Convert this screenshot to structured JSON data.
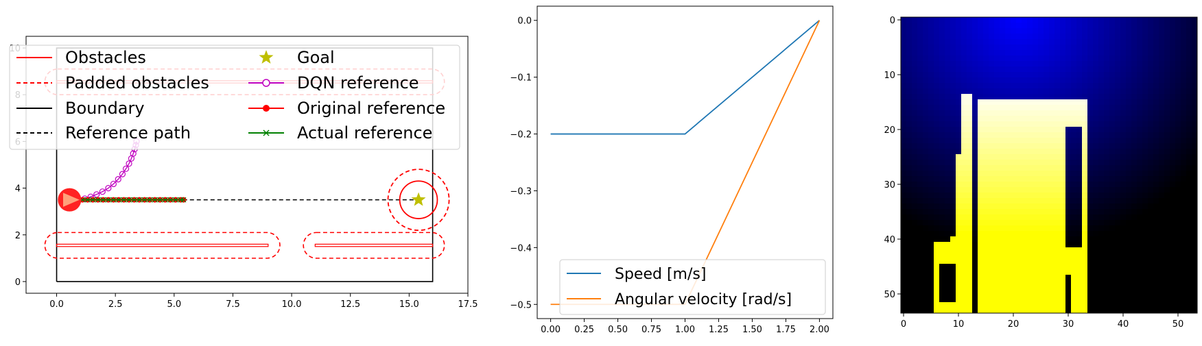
{
  "chart_data": [
    {
      "type": "line",
      "panel": "map",
      "xlim": [
        -1.3,
        17.5
      ],
      "ylim": [
        -0.5,
        10.5
      ],
      "xticks": [
        0.0,
        2.5,
        5.0,
        7.5,
        10.0,
        12.5,
        15.0,
        17.5
      ],
      "xtick_labels": [
        "0.0",
        "2.5",
        "5.0",
        "7.5",
        "10.0",
        "12.5",
        "15.0",
        "17.5"
      ],
      "yticks": [
        0,
        2,
        4,
        6,
        8,
        10
      ],
      "ytick_labels": [
        "0",
        "2",
        "4",
        "6",
        "8",
        "10"
      ],
      "grid": false,
      "legend_position": "top",
      "legend": [
        {
          "label": "Obstacles",
          "color": "#ff0000",
          "style": "solid"
        },
        {
          "label": "Padded obstacles",
          "color": "#ff0000",
          "style": "dashed"
        },
        {
          "label": "Boundary",
          "color": "#000000",
          "style": "solid"
        },
        {
          "label": "Reference path",
          "color": "#000000",
          "style": "dashed"
        },
        {
          "label": "Goal",
          "color": "#bfbf00",
          "marker": "star"
        },
        {
          "label": "DQN reference",
          "color": "#bf00bf",
          "marker": "open-circle"
        },
        {
          "label": "Original reference",
          "color": "#ff0000",
          "marker": "filled-circle"
        },
        {
          "label": "Actual reference",
          "color": "#008000",
          "marker": "x"
        }
      ],
      "boundary": [
        [
          0,
          0
        ],
        [
          16,
          0
        ],
        [
          16,
          10
        ],
        [
          0,
          10
        ],
        [
          0,
          0
        ]
      ],
      "reference_path": [
        [
          1.0,
          3.5
        ],
        [
          15.4,
          3.5
        ]
      ],
      "obstacles": [
        {
          "x": [
            0,
            9
          ],
          "y": [
            1.5,
            1.6
          ]
        },
        {
          "x": [
            11,
            16
          ],
          "y": [
            1.5,
            1.6
          ]
        },
        {
          "x": [
            0,
            16
          ],
          "y": [
            8.5,
            8.6
          ]
        }
      ],
      "padded_obstacles": [
        {
          "x": [
            -0.5,
            9.5
          ],
          "y": [
            1.0,
            2.1
          ]
        },
        {
          "x": [
            10.5,
            16.5
          ],
          "y": [
            1.0,
            2.1
          ]
        },
        {
          "x": [
            -0.5,
            16.5
          ],
          "y": [
            8.0,
            9.1
          ]
        }
      ],
      "goal": [
        15.4,
        3.5
      ],
      "goal_circle_radius": 0.8,
      "goal_padded_radius": 1.3,
      "robot": {
        "x": 0.55,
        "y": 3.5,
        "radius": 0.5
      },
      "dqn_reference": {
        "x": [
          1.2,
          1.45,
          1.7,
          1.95,
          2.2,
          2.42,
          2.62,
          2.8,
          2.95,
          3.08,
          3.18,
          3.26,
          3.32,
          3.37,
          3.4
        ],
        "y": [
          3.55,
          3.63,
          3.73,
          3.85,
          4.0,
          4.18,
          4.38,
          4.6,
          4.83,
          5.05,
          5.27,
          5.48,
          5.67,
          5.84,
          6.0
        ]
      },
      "original_reference": {
        "x": [
          1.1,
          1.32,
          1.54,
          1.76,
          1.98,
          2.2,
          2.42,
          2.64,
          2.86,
          3.08,
          3.3,
          3.52,
          3.74,
          3.96,
          4.18,
          4.4,
          4.62,
          4.84,
          5.06,
          5.28,
          5.4
        ],
        "y": [
          3.5,
          3.5,
          3.5,
          3.5,
          3.5,
          3.5,
          3.5,
          3.5,
          3.5,
          3.5,
          3.5,
          3.5,
          3.5,
          3.5,
          3.5,
          3.5,
          3.5,
          3.5,
          3.5,
          3.5,
          3.5
        ]
      },
      "actual_reference": {
        "x": [
          1.1,
          1.32,
          1.54,
          1.76,
          1.98,
          2.2,
          2.42,
          2.64,
          2.86,
          3.08,
          3.3,
          3.52,
          3.74,
          3.96,
          4.18,
          4.4,
          4.62,
          4.84,
          5.06,
          5.28,
          5.4
        ],
        "y": [
          3.5,
          3.5,
          3.5,
          3.5,
          3.5,
          3.5,
          3.5,
          3.5,
          3.5,
          3.5,
          3.5,
          3.5,
          3.5,
          3.5,
          3.5,
          3.5,
          3.5,
          3.5,
          3.5,
          3.5,
          3.5
        ]
      }
    },
    {
      "type": "line",
      "panel": "actions",
      "xlim": [
        -0.1,
        2.1
      ],
      "ylim": [
        -0.525,
        0.025
      ],
      "xticks": [
        0.0,
        0.25,
        0.5,
        0.75,
        1.0,
        1.25,
        1.5,
        1.75,
        2.0
      ],
      "xtick_labels": [
        "0.00",
        "0.25",
        "0.50",
        "0.75",
        "1.00",
        "1.25",
        "1.50",
        "1.75",
        "2.00"
      ],
      "yticks": [
        0.0,
        -0.1,
        -0.2,
        -0.3,
        -0.4,
        -0.5
      ],
      "ytick_labels": [
        "0.0",
        "−0.1",
        "−0.2",
        "−0.3",
        "−0.4",
        "−0.5"
      ],
      "grid": false,
      "legend_position": "lower center",
      "series": [
        {
          "name": "Speed [m/s]",
          "color": "#1f77b4",
          "x": [
            0,
            1,
            2
          ],
          "y": [
            -0.2,
            -0.2,
            0.0
          ]
        },
        {
          "name": "Angular velocity [rad/s]",
          "color": "#ff7f0e",
          "x": [
            0,
            1,
            2
          ],
          "y": [
            -0.5,
            -0.5,
            0.0
          ]
        }
      ]
    },
    {
      "type": "heatmap",
      "panel": "observation",
      "size": [
        54,
        54
      ],
      "xticks": [
        0,
        10,
        20,
        30,
        40,
        50
      ],
      "xtick_labels": [
        "0",
        "10",
        "20",
        "30",
        "40",
        "50"
      ],
      "yticks": [
        0,
        10,
        20,
        30,
        40,
        50
      ],
      "ytick_labels": [
        "0",
        "10",
        "20",
        "30",
        "40",
        "50"
      ],
      "background_peak": [
        21,
        0
      ],
      "background_color": "#0000ff",
      "free_space_color": "#ffff00",
      "free_region_bounds": {
        "x": [
          14,
          30
        ],
        "y": [
          15,
          54
        ]
      },
      "left_lobe": {
        "x": [
          6,
          13
        ],
        "y": [
          14,
          54
        ]
      },
      "right_lobe": {
        "x": [
          26,
          36
        ],
        "y": [
          15,
          54
        ]
      }
    }
  ]
}
